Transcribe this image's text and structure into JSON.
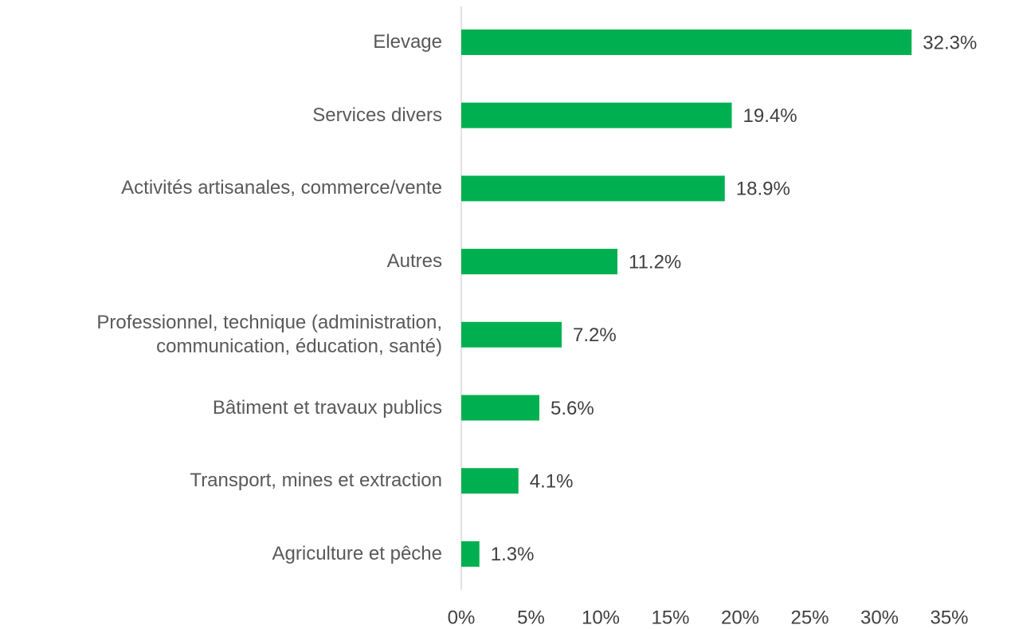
{
  "chart_data": {
    "type": "bar",
    "orientation": "horizontal",
    "categories": [
      "Elevage",
      "Services divers",
      "Activités artisanales, commerce/vente",
      "Autres",
      "Professionnel, technique (administration, communication, éducation, santé)",
      "Bâtiment et travaux publics",
      "Transport, mines et extraction",
      "Agriculture et pêche"
    ],
    "values": [
      32.3,
      19.4,
      18.9,
      11.2,
      7.2,
      5.6,
      4.1,
      1.3
    ],
    "value_labels": [
      "32.3%",
      "19.4%",
      "18.9%",
      "11.2%",
      "7.2%",
      "5.6%",
      "4.1%",
      "1.3%"
    ],
    "color": "#00b050",
    "xlim": [
      0,
      35
    ],
    "xticks": [
      {
        "value": 0,
        "label": "0%"
      },
      {
        "value": 5,
        "label": "5%"
      },
      {
        "value": 10,
        "label": "10%"
      },
      {
        "value": 15,
        "label": "15%"
      },
      {
        "value": 20,
        "label": "20%"
      },
      {
        "value": 25,
        "label": "25%"
      },
      {
        "value": 30,
        "label": "30%"
      },
      {
        "value": 35,
        "label": "35%"
      }
    ],
    "grid": false
  }
}
